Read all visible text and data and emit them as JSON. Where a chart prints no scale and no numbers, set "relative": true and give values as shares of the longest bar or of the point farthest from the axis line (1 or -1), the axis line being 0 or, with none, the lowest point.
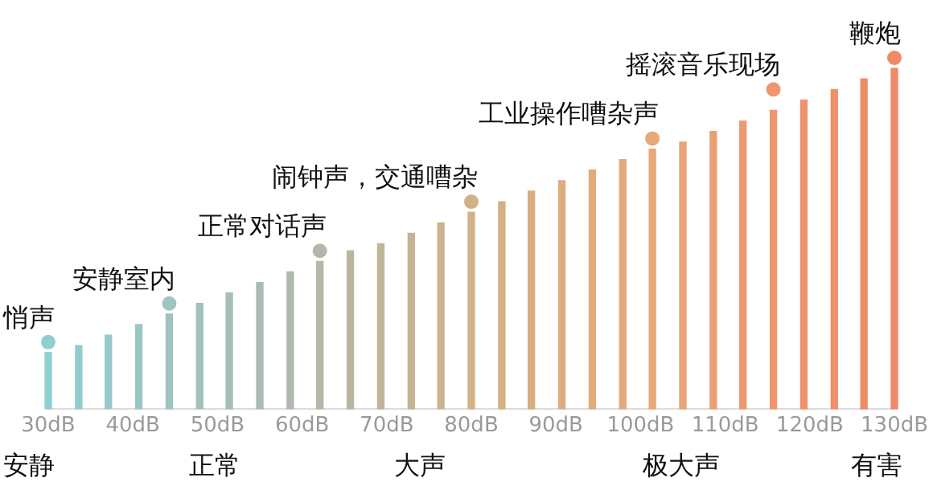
{
  "chart_data": {
    "type": "bar",
    "relative": true,
    "grid": false,
    "legend": false,
    "xlim": [
      30,
      130
    ],
    "xticks": [
      {
        "value": 30,
        "label": "30dB"
      },
      {
        "value": 40,
        "label": "40dB"
      },
      {
        "value": 50,
        "label": "50dB"
      },
      {
        "value": 60,
        "label": "60dB"
      },
      {
        "value": 70,
        "label": "70dB"
      },
      {
        "value": 80,
        "label": "80dB"
      },
      {
        "value": 90,
        "label": "90dB"
      },
      {
        "value": 100,
        "label": "100dB"
      },
      {
        "value": 110,
        "label": "110dB"
      },
      {
        "value": 120,
        "label": "120dB"
      },
      {
        "value": 130,
        "label": "130dB"
      }
    ],
    "x": [
      30,
      33.6,
      37.1,
      40.7,
      44.3,
      47.9,
      51.4,
      55,
      58.6,
      62.1,
      65.7,
      69.3,
      72.9,
      76.4,
      80,
      83.6,
      87.1,
      90.7,
      94.3,
      97.9,
      101.4,
      105,
      108.6,
      112.1,
      115.7,
      119.3,
      122.9,
      126.4,
      130
    ],
    "series": [
      {
        "values": [
          0.16,
          0.18,
          0.21,
          0.24,
          0.27,
          0.3,
          0.33,
          0.36,
          0.39,
          0.42,
          0.45,
          0.47,
          0.5,
          0.53,
          0.56,
          0.59,
          0.62,
          0.65,
          0.68,
          0.71,
          0.74,
          0.76,
          0.79,
          0.82,
          0.85,
          0.88,
          0.91,
          0.94,
          0.97
        ],
        "colors": [
          "#8ecfcf",
          "#92cdcc",
          "#96cac8",
          "#9ac7c4",
          "#9ec4bf",
          "#a2c1bb",
          "#a7beb6",
          "#abbbb1",
          "#afb9ad",
          "#b4b8a8",
          "#b9b7a1",
          "#bfb69a",
          "#c4b493",
          "#cab38d",
          "#d0b287",
          "#d4b084",
          "#d8ae81",
          "#dcad7e",
          "#e0ab7b",
          "#e4aa79",
          "#e8a878",
          "#eaa376",
          "#eb9e74",
          "#ed9a72",
          "#ef9570",
          "#ef936e",
          "#ef906c",
          "#ee8d6a",
          "#ee8a68"
        ]
      },
      {
        "type": "scatter",
        "marker": "circle",
        "x": [
          30,
          44.3,
          62.1,
          80,
          101.4,
          115.7,
          130
        ],
        "values": [
          0.19,
          0.3,
          0.45,
          0.59,
          0.77,
          0.91,
          1
        ],
        "colors": [
          "#8ecfcf",
          "#9ec4bf",
          "#b4b8a8",
          "#d0b287",
          "#e8a878",
          "#ef9570",
          "#ee8a68"
        ]
      }
    ],
    "annotations": [
      {
        "text": "悄声",
        "x": 30,
        "y": 0.19
      },
      {
        "text": "安静室内",
        "x": 44.3,
        "y": 0.3
      },
      {
        "text": "正常对话声",
        "x": 62.1,
        "y": 0.45
      },
      {
        "text": "闹钟声，交通嘈杂",
        "x": 80,
        "y": 0.59
      },
      {
        "text": "工业操作嘈杂声",
        "x": 101.4,
        "y": 0.77
      },
      {
        "text": "摇滚音乐现场",
        "x": 115.7,
        "y": 0.91
      },
      {
        "text": "鞭炮",
        "x": 130,
        "y": 1
      },
      "安静",
      "正常",
      "大声",
      "极大声",
      "有害"
    ]
  }
}
